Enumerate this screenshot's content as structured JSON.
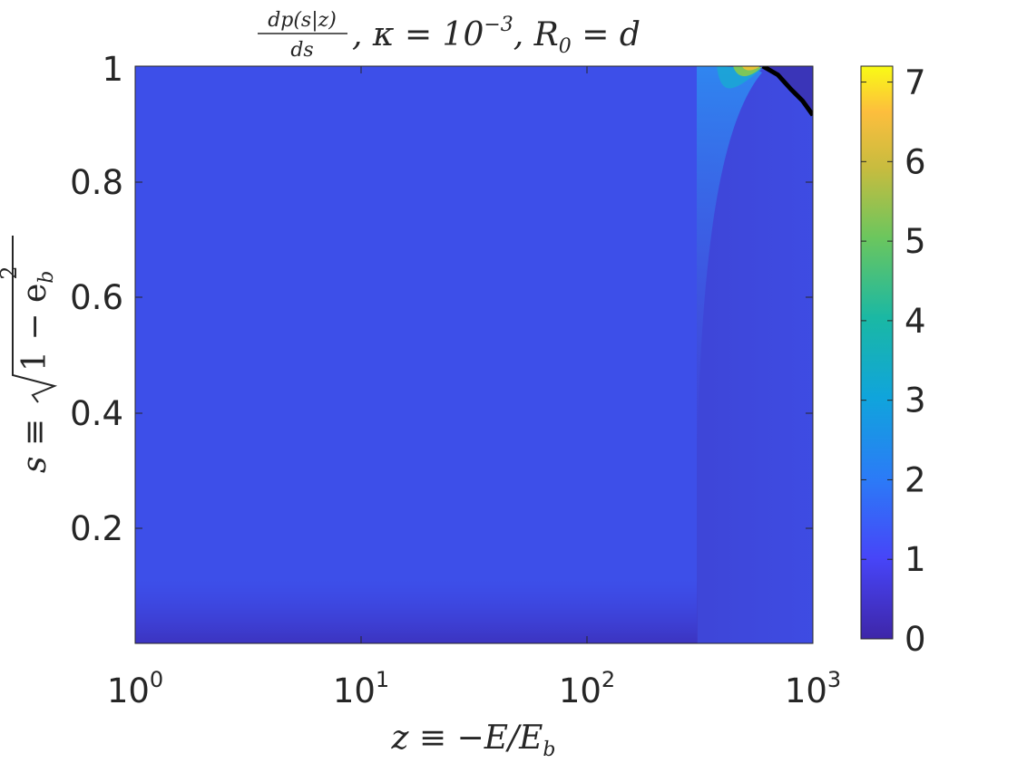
{
  "chart_data": {
    "type": "heatmap",
    "title": {
      "frac_num": "dp(s|z)",
      "frac_den": "ds",
      "rest": ", κ = 10",
      "rest_exp": "−3",
      "tail": ", R",
      "tail_sub": "0",
      "tail_end": " = d"
    },
    "xlabel": "z ≡ −E/E",
    "xlabel_sub": "b",
    "ylabel": {
      "prefix": "s ≡ ",
      "radicand": "1 − e",
      "sub": "b",
      "sup": "2"
    },
    "x_scale": "log",
    "xlim": [
      1,
      1000
    ],
    "x_ticks": [
      {
        "value": 1,
        "base": "10",
        "exp": "0"
      },
      {
        "value": 10,
        "base": "10",
        "exp": "1"
      },
      {
        "value": 100,
        "base": "10",
        "exp": "2"
      },
      {
        "value": 1000,
        "base": "10",
        "exp": "3"
      }
    ],
    "ylim": [
      0,
      1
    ],
    "y_ticks": [
      {
        "value": 0.2,
        "label": "0.2"
      },
      {
        "value": 0.4,
        "label": "0.4"
      },
      {
        "value": 0.6,
        "label": "0.6"
      },
      {
        "value": 0.8,
        "label": "0.8"
      },
      {
        "value": 1.0,
        "label": "1"
      }
    ],
    "colorbar": {
      "colormap": "parula",
      "clim": [
        0,
        7.2
      ],
      "ticks": [
        {
          "value": 0,
          "label": "0"
        },
        {
          "value": 1,
          "label": "1"
        },
        {
          "value": 2,
          "label": "2"
        },
        {
          "value": 3,
          "label": "3"
        },
        {
          "value": 4,
          "label": "4"
        },
        {
          "value": 5,
          "label": "5"
        },
        {
          "value": 6,
          "label": "6"
        },
        {
          "value": 7,
          "label": "7"
        }
      ]
    },
    "field": {
      "background_value": 0.9,
      "step_z": 300,
      "peak_s": 1.0,
      "peak_z": 500,
      "peak_value": 7
    },
    "boundary_curve": {
      "color": "#000000",
      "points": [
        [
          600,
          1.0
        ],
        [
          700,
          0.985
        ],
        [
          800,
          0.96
        ],
        [
          900,
          0.94
        ],
        [
          1000,
          0.915
        ]
      ]
    },
    "grid": false,
    "legend": "none"
  }
}
